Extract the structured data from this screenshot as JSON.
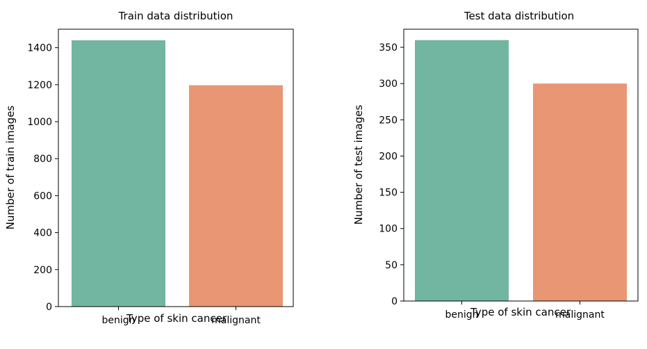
{
  "chart_data": [
    {
      "type": "bar",
      "title": "Train data distribution",
      "xlabel": "Type of skin cancer",
      "ylabel": "Number of train images",
      "categories": [
        "benign",
        "malignant"
      ],
      "values": [
        1440,
        1197
      ],
      "colors": [
        "#72b6a1",
        "#e99675"
      ],
      "ylim": [
        0,
        1500
      ],
      "yticks": [
        0,
        200,
        400,
        600,
        800,
        1000,
        1200,
        1400
      ],
      "grid": false
    },
    {
      "type": "bar",
      "title": "Test data distribution",
      "xlabel": "Type of skin cancer",
      "ylabel": "Number of test images",
      "categories": [
        "benign",
        "malignant"
      ],
      "values": [
        360,
        300
      ],
      "colors": [
        "#72b6a1",
        "#e99675"
      ],
      "ylim": [
        0,
        375
      ],
      "yticks": [
        0,
        50,
        100,
        150,
        200,
        250,
        300,
        350
      ],
      "grid": false
    }
  ]
}
